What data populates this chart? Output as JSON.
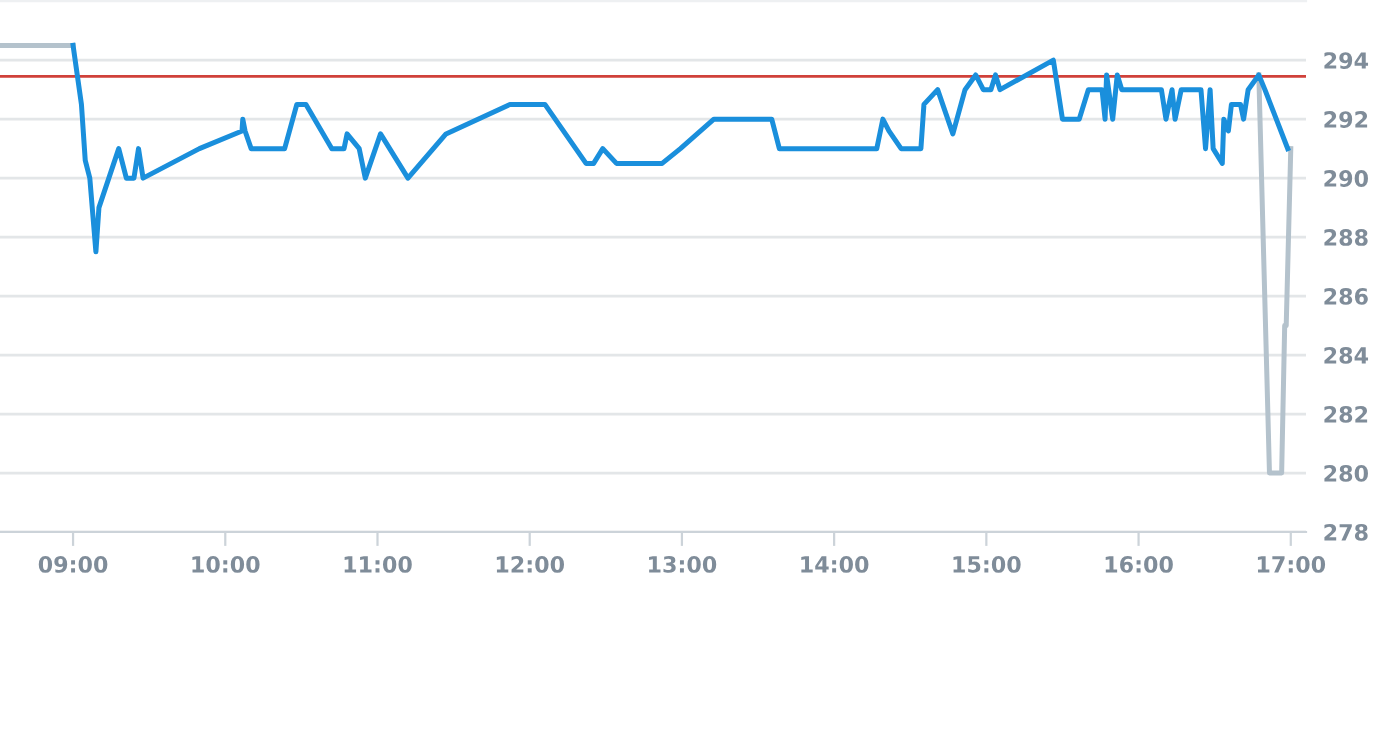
{
  "chart_data": {
    "type": "line",
    "xlim": [
      8.52,
      17.1
    ],
    "xticks": [
      {
        "value": 9,
        "label": "09:00"
      },
      {
        "value": 10,
        "label": "10:00"
      },
      {
        "value": 11,
        "label": "11:00"
      },
      {
        "value": 12,
        "label": "12:00"
      },
      {
        "value": 13,
        "label": "13:00"
      },
      {
        "value": 14,
        "label": "14:00"
      },
      {
        "value": 15,
        "label": "15:00"
      },
      {
        "value": 16,
        "label": "16:00"
      },
      {
        "value": 17,
        "label": "17:00"
      }
    ],
    "ylim": [
      278,
      296
    ],
    "yticks": [
      278,
      280,
      282,
      284,
      286,
      288,
      290,
      292,
      294
    ],
    "grid": "y",
    "line_style": "solid",
    "ref_lines": [
      {
        "axis": "y",
        "value": 293.45,
        "color": "#d0413a"
      }
    ],
    "series": [
      {
        "color": "#b4c2cc",
        "x": [
          8.52,
          9.0,
          9.01,
          16.79,
          16.86,
          16.94,
          16.96,
          16.97,
          17.0
        ],
        "values": [
          294.5,
          294.5,
          null,
          293.5,
          280,
          280,
          285,
          285,
          291
        ]
      },
      {
        "color": "#1a8fdc",
        "x": [
          9.0,
          9.055,
          9.08,
          9.11,
          9.15,
          9.17,
          9.3,
          9.35,
          9.4,
          9.43,
          9.46,
          9.83,
          10.11,
          10.115,
          10.13,
          10.17,
          10.39,
          10.47,
          10.53,
          10.7,
          10.78,
          10.8,
          10.88,
          10.92,
          11.02,
          11.2,
          11.45,
          11.87,
          12.1,
          12.37,
          12.42,
          12.48,
          12.57,
          12.87,
          12.99,
          13.21,
          13.59,
          13.64,
          14.28,
          14.32,
          14.36,
          14.44,
          14.57,
          14.59,
          14.68,
          14.78,
          14.86,
          14.93,
          14.98,
          15.03,
          15.06,
          15.09,
          15.44,
          15.5,
          15.61,
          15.67,
          15.76,
          15.78,
          15.79,
          15.83,
          15.86,
          15.89,
          16.15,
          16.18,
          16.22,
          16.24,
          16.28,
          16.41,
          16.44,
          16.47,
          16.49,
          16.55,
          16.56,
          16.59,
          16.61,
          16.67,
          16.69,
          16.72,
          16.79,
          16.83,
          16.98
        ],
        "values": [
          294.5,
          292.5,
          290.6,
          290,
          287.5,
          289,
          291,
          290,
          290,
          291,
          290,
          291,
          291.6,
          292,
          291.6,
          291,
          291,
          292.5,
          292.5,
          291,
          291,
          291.5,
          291,
          290,
          291.5,
          290,
          291.5,
          292.5,
          292.5,
          290.5,
          290.5,
          291,
          290.5,
          290.5,
          291,
          292,
          292,
          291,
          291,
          292,
          291.6,
          291,
          291,
          292.5,
          293,
          291.5,
          293,
          293.5,
          293,
          293,
          293.5,
          293,
          294,
          292,
          292,
          293,
          293,
          292,
          293.5,
          292,
          293.5,
          293,
          293,
          292,
          293,
          292,
          293,
          293,
          291,
          293,
          291,
          290.5,
          292,
          291.6,
          292.5,
          292.5,
          292,
          293,
          293.5,
          293,
          291
        ]
      }
    ]
  }
}
